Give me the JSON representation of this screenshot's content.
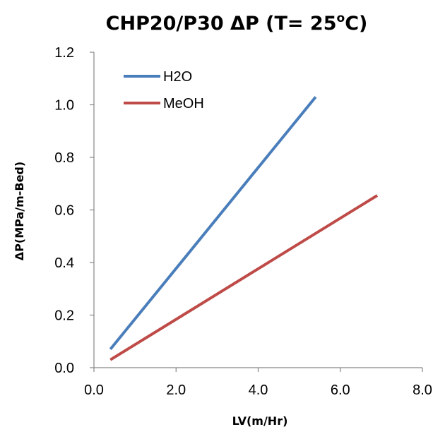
{
  "chart_data": {
    "type": "line",
    "title": {
      "main": "CHP20/P30 ΔP (T= 25",
      "superscript": "o",
      "suffix": "C)"
    },
    "xlabel": "LV(m/Hr)",
    "ylabel": "ΔP(MPa/m-Bed)",
    "xlim": [
      0,
      8
    ],
    "ylim": [
      0,
      1.2
    ],
    "xticks": [
      0,
      2,
      4,
      6,
      8
    ],
    "yticks": [
      0,
      0.2,
      0.4,
      0.6,
      0.8,
      1.0,
      1.2
    ],
    "xtick_labels": [
      "0.0",
      "2.0",
      "4.0",
      "6.0",
      "8.0"
    ],
    "ytick_labels": [
      "0.0",
      "0.2",
      "0.4",
      "0.6",
      "0.8",
      "1.0",
      "1.2"
    ],
    "grid": false,
    "legend_position": "top-left",
    "series": [
      {
        "name": "H2O",
        "color": "#4A7EBB",
        "x": [
          0.4,
          5.4
        ],
        "y": [
          0.07,
          1.03
        ]
      },
      {
        "name": "MeOH",
        "color": "#BE4B48",
        "x": [
          0.4,
          6.9
        ],
        "y": [
          0.03,
          0.655
        ]
      }
    ]
  }
}
